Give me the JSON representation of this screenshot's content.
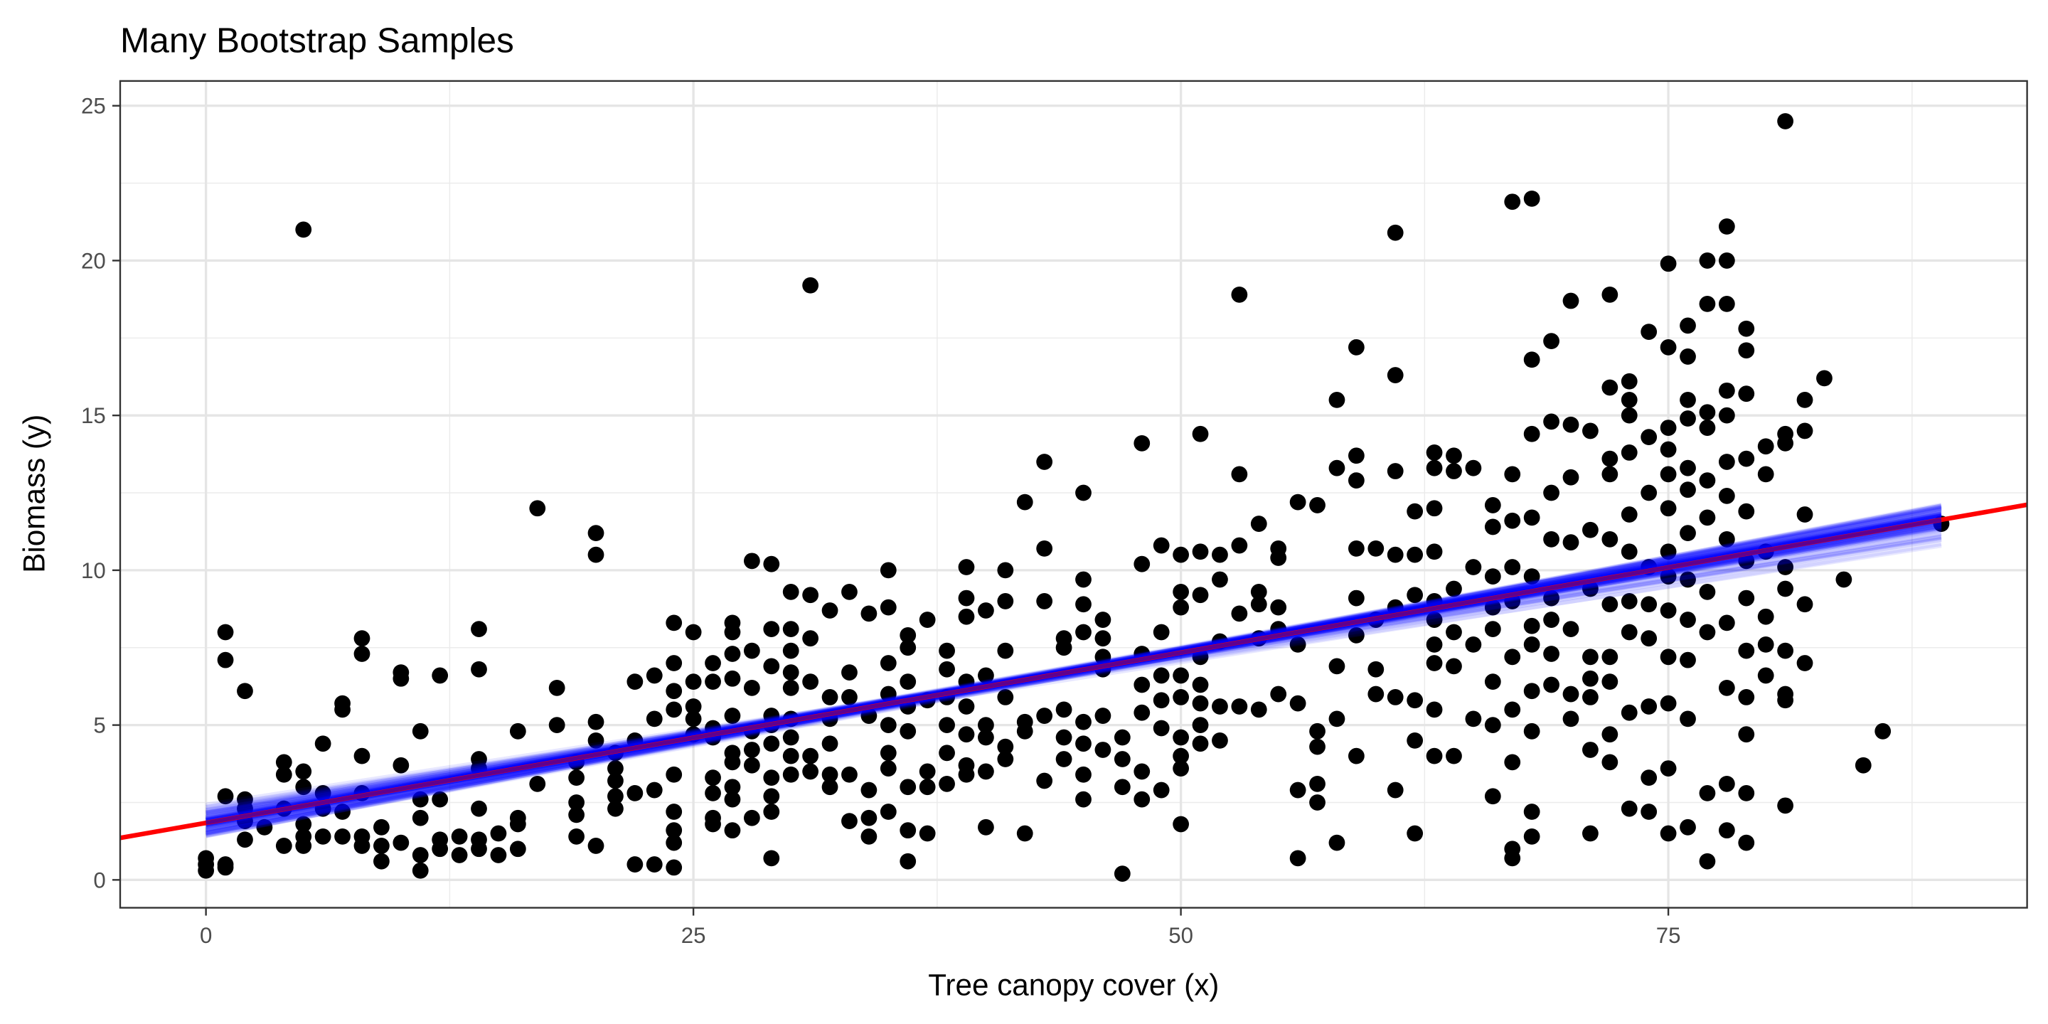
{
  "chart_data": {
    "type": "scatter",
    "title": "Many Bootstrap Samples",
    "xlabel": "Tree canopy cover (x)",
    "ylabel": "Biomass (y)",
    "xlim": [
      -4.4,
      93.4
    ],
    "ylim": [
      -0.9,
      25.8
    ],
    "xticks": [
      0,
      25,
      50,
      75
    ],
    "yticks": [
      0,
      5,
      10,
      15,
      20,
      25
    ],
    "grid": true,
    "fit_line": {
      "color": "#ff0000",
      "intercept": 1.84,
      "slope": 0.11
    },
    "bootstrap_lines": {
      "color": "#0000ff",
      "count": 100,
      "x_range": [
        0,
        89
      ],
      "intercept": 1.84,
      "slope": 0.11,
      "intercept_sd": 0.22,
      "slope_sd": 0.005
    },
    "point_color": "#000000",
    "columns": [
      [
        0,
        [
          0.3,
          0.5,
          0.7
        ]
      ],
      [
        1,
        [
          8.0,
          7.1,
          2.7,
          0.4,
          0.5
        ]
      ],
      [
        2,
        [
          6.1,
          2.6,
          2.3,
          1.9,
          1.3
        ]
      ],
      [
        3,
        [
          1.7
        ]
      ],
      [
        4,
        [
          3.8,
          3.4,
          2.3,
          1.1
        ]
      ],
      [
        5,
        [
          21.0,
          3.5,
          3.0,
          1.8,
          1.4,
          1.1
        ]
      ],
      [
        6,
        [
          4.4,
          2.8,
          2.3,
          1.4
        ]
      ],
      [
        7,
        [
          5.7,
          5.5,
          2.2,
          1.4
        ]
      ],
      [
        8,
        [
          7.8,
          7.3,
          4.0,
          2.8,
          1.4,
          1.1
        ]
      ],
      [
        9,
        [
          1.7,
          1.1,
          0.6
        ]
      ],
      [
        10,
        [
          6.7,
          6.5,
          3.7,
          1.2
        ]
      ],
      [
        11,
        [
          4.8,
          2.6,
          2.0,
          0.8,
          0.3
        ]
      ],
      [
        12,
        [
          6.6,
          2.6,
          1.3,
          1.0
        ]
      ],
      [
        13,
        [
          1.4,
          0.8
        ]
      ],
      [
        14,
        [
          8.1,
          6.8,
          3.9,
          3.6,
          2.3,
          1.3,
          1.0
        ]
      ],
      [
        15,
        [
          1.5,
          0.8
        ]
      ],
      [
        16,
        [
          4.8,
          2.0,
          1.8,
          1.0
        ]
      ],
      [
        17,
        [
          12.0,
          3.1
        ]
      ],
      [
        18,
        [
          6.2,
          5.0
        ]
      ],
      [
        19,
        [
          3.8,
          3.3,
          2.5,
          2.1,
          1.4
        ]
      ],
      [
        20,
        [
          11.2,
          10.5,
          5.1,
          4.5,
          1.1
        ]
      ],
      [
        21,
        [
          4.1,
          3.6,
          3.2,
          2.7,
          2.3
        ]
      ],
      [
        22,
        [
          6.4,
          4.5,
          2.8,
          0.5
        ]
      ],
      [
        23,
        [
          6.6,
          5.2,
          2.9,
          0.5
        ]
      ],
      [
        24,
        [
          8.3,
          7.0,
          6.1,
          5.5,
          3.4,
          2.2,
          1.6,
          1.2,
          0.4
        ]
      ],
      [
        25,
        [
          8.0,
          6.4,
          5.6,
          5.2,
          4.7
        ]
      ],
      [
        26,
        [
          7.0,
          6.4,
          4.9,
          4.6,
          3.3,
          2.8,
          2.0,
          1.8
        ]
      ],
      [
        27,
        [
          8.3,
          8.0,
          7.3,
          6.5,
          5.3,
          4.1,
          3.8,
          3.0,
          2.6,
          1.6
        ]
      ],
      [
        28,
        [
          10.3,
          7.4,
          6.2,
          4.8,
          4.2,
          3.7,
          2.0
        ]
      ],
      [
        29,
        [
          10.2,
          8.1,
          6.9,
          5.3,
          5.0,
          4.4,
          3.3,
          2.7,
          2.2,
          0.7
        ]
      ],
      [
        30,
        [
          9.3,
          8.1,
          7.4,
          6.7,
          6.2,
          5.2,
          4.6,
          4.0,
          3.4
        ]
      ],
      [
        31,
        [
          19.2,
          9.2,
          7.8,
          6.4,
          4.0,
          3.5
        ]
      ],
      [
        32,
        [
          8.7,
          5.9,
          5.2,
          4.4,
          3.4,
          3.0
        ]
      ],
      [
        33,
        [
          9.3,
          6.7,
          5.9,
          3.4,
          1.9
        ]
      ],
      [
        34,
        [
          8.6,
          5.3,
          2.9,
          2.0,
          1.4
        ]
      ],
      [
        35,
        [
          10.0,
          8.8,
          7.0,
          6.0,
          5.0,
          4.1,
          3.6,
          2.2
        ]
      ],
      [
        36,
        [
          7.9,
          7.5,
          6.4,
          5.6,
          4.8,
          3.0,
          1.6,
          0.6
        ]
      ],
      [
        37,
        [
          8.4,
          5.8,
          3.5,
          3.0,
          1.5
        ]
      ],
      [
        38,
        [
          7.4,
          6.8,
          5.9,
          5.0,
          4.1,
          3.1
        ]
      ],
      [
        39,
        [
          10.1,
          9.1,
          8.5,
          6.4,
          5.6,
          4.7,
          3.7,
          3.4
        ]
      ],
      [
        40,
        [
          8.7,
          6.6,
          5.0,
          4.6,
          3.5,
          1.7
        ]
      ],
      [
        41,
        [
          10.0,
          9.0,
          7.4,
          5.9,
          4.3,
          3.9
        ]
      ],
      [
        42,
        [
          12.2,
          5.1,
          4.8,
          1.5
        ]
      ],
      [
        43,
        [
          13.5,
          10.7,
          9.0,
          5.3,
          3.2
        ]
      ],
      [
        44,
        [
          7.8,
          7.5,
          5.5,
          4.6,
          3.9
        ]
      ],
      [
        45,
        [
          12.5,
          9.7,
          8.9,
          8.0,
          5.1,
          4.4,
          3.4,
          2.6
        ]
      ],
      [
        46,
        [
          8.4,
          7.8,
          7.2,
          6.8,
          5.3,
          4.2
        ]
      ],
      [
        47,
        [
          4.6,
          3.9,
          3.0,
          0.2
        ]
      ],
      [
        48,
        [
          14.1,
          10.2,
          7.3,
          6.3,
          5.4,
          3.5,
          2.6
        ]
      ],
      [
        49,
        [
          10.8,
          8.0,
          6.6,
          5.8,
          4.9,
          2.9
        ]
      ],
      [
        50,
        [
          10.5,
          9.3,
          8.8,
          6.6,
          5.9,
          4.6,
          4.0,
          3.6,
          1.8
        ]
      ],
      [
        51,
        [
          14.4,
          10.6,
          9.2,
          7.2,
          6.3,
          5.7,
          5.0,
          4.4
        ]
      ],
      [
        52,
        [
          10.5,
          9.7,
          7.7,
          5.6,
          4.5
        ]
      ],
      [
        53,
        [
          18.9,
          13.1,
          10.8,
          8.6,
          5.6
        ]
      ],
      [
        54,
        [
          11.5,
          9.3,
          8.9,
          7.8,
          5.5
        ]
      ],
      [
        55,
        [
          10.7,
          10.4,
          8.8,
          8.1,
          6.0
        ]
      ],
      [
        56,
        [
          12.2,
          7.6,
          5.7,
          2.9,
          0.7
        ]
      ],
      [
        57,
        [
          12.1,
          4.8,
          4.3,
          3.1,
          2.5
        ]
      ],
      [
        58,
        [
          15.5,
          13.3,
          6.9,
          5.2,
          1.2
        ]
      ],
      [
        59,
        [
          17.2,
          13.7,
          12.9,
          10.7,
          9.1,
          7.9,
          4.0
        ]
      ],
      [
        60,
        [
          10.7,
          8.4,
          6.8,
          6.0
        ]
      ],
      [
        61,
        [
          20.9,
          16.3,
          13.2,
          10.5,
          8.8,
          5.9,
          2.9
        ]
      ],
      [
        62,
        [
          11.9,
          10.5,
          9.2,
          5.8,
          4.5,
          1.5
        ]
      ],
      [
        63,
        [
          13.8,
          13.3,
          12.0,
          10.6,
          9.0,
          8.4,
          7.6,
          7.0,
          5.5,
          4.0
        ]
      ],
      [
        64,
        [
          13.7,
          13.2,
          9.4,
          8.0,
          6.9,
          4.0
        ]
      ],
      [
        65,
        [
          13.3,
          10.1,
          7.6,
          5.2
        ]
      ],
      [
        66,
        [
          12.1,
          11.4,
          9.8,
          8.8,
          8.1,
          6.4,
          5.0,
          2.7
        ]
      ],
      [
        67,
        [
          21.9,
          13.1,
          11.6,
          10.1,
          9.0,
          7.2,
          5.5,
          3.8,
          1.0,
          0.7
        ]
      ],
      [
        68,
        [
          22.0,
          16.8,
          14.4,
          11.7,
          9.8,
          8.2,
          7.6,
          6.1,
          4.8,
          2.2,
          1.4
        ]
      ],
      [
        69,
        [
          17.4,
          14.8,
          12.5,
          11.0,
          9.1,
          8.4,
          7.3,
          6.3
        ]
      ],
      [
        70,
        [
          18.7,
          14.7,
          13.0,
          10.9,
          8.1,
          6.0,
          5.2
        ]
      ],
      [
        71,
        [
          14.5,
          11.3,
          9.4,
          7.2,
          6.5,
          5.9,
          4.2,
          1.5
        ]
      ],
      [
        72,
        [
          18.9,
          15.9,
          13.6,
          13.1,
          11.0,
          8.9,
          7.2,
          6.4,
          4.7,
          3.8
        ]
      ],
      [
        73,
        [
          16.1,
          15.5,
          15.0,
          13.8,
          11.8,
          10.6,
          9.0,
          8.0,
          5.4,
          2.3
        ]
      ],
      [
        74,
        [
          17.7,
          14.3,
          12.5,
          10.1,
          8.9,
          7.8,
          5.6,
          3.3,
          2.2
        ]
      ],
      [
        75,
        [
          19.9,
          17.2,
          14.6,
          13.9,
          13.1,
          12.0,
          10.6,
          9.8,
          8.7,
          7.2,
          5.7,
          3.6,
          1.5
        ]
      ],
      [
        76,
        [
          17.9,
          16.9,
          15.5,
          14.9,
          13.3,
          12.6,
          11.2,
          9.7,
          8.4,
          7.1,
          5.2,
          1.7
        ]
      ],
      [
        77,
        [
          20.0,
          18.6,
          15.1,
          14.6,
          12.9,
          11.7,
          9.3,
          8.0,
          2.8,
          0.6
        ]
      ],
      [
        78,
        [
          21.1,
          20.0,
          18.6,
          15.8,
          15.0,
          13.5,
          12.4,
          11.0,
          8.3,
          6.2,
          3.1,
          1.6
        ]
      ],
      [
        79,
        [
          17.8,
          17.1,
          15.7,
          13.6,
          11.9,
          10.3,
          9.1,
          7.4,
          5.9,
          4.7,
          2.8,
          1.2
        ]
      ],
      [
        80,
        [
          14.0,
          13.1,
          10.6,
          8.5,
          7.6,
          6.6
        ]
      ],
      [
        81,
        [
          24.5,
          14.4,
          14.1,
          10.1,
          9.4,
          7.4,
          6.0,
          5.8,
          2.4
        ]
      ],
      [
        82,
        [
          15.5,
          14.5,
          11.8,
          8.9,
          7.0
        ]
      ],
      [
        83,
        [
          16.2
        ]
      ],
      [
        84,
        [
          9.7
        ]
      ],
      [
        85,
        [
          3.7
        ]
      ],
      [
        86,
        [
          4.8
        ]
      ],
      [
        89,
        [
          11.5
        ]
      ]
    ]
  }
}
